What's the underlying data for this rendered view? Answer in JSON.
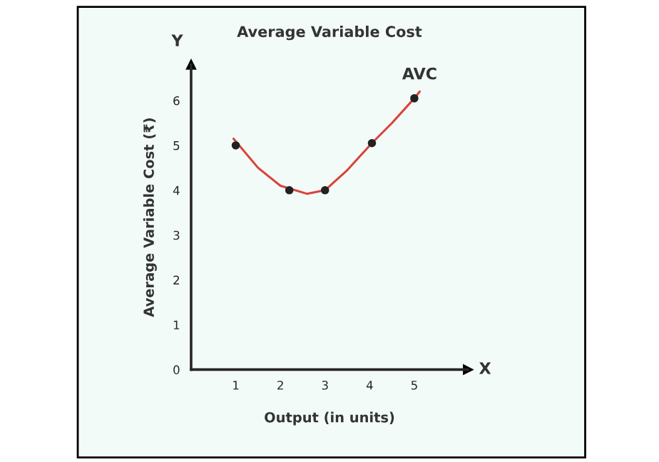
{
  "chart_data": {
    "type": "line",
    "title": "Average Variable Cost",
    "xlabel": "Output (in units)",
    "ylabel": "Average Variable Cost (₹)",
    "xlim": [
      0,
      6.2
    ],
    "ylim": [
      0,
      6.8
    ],
    "xticks": [
      1,
      2,
      3,
      4,
      5
    ],
    "yticks": [
      {
        "value": 0,
        "label": "0"
      },
      1,
      2,
      3,
      4,
      5,
      6
    ],
    "series": [
      {
        "name": "AVC",
        "color": "#d9433a",
        "x": [
          0.95,
          1.5,
          2,
          2.6,
          3,
          3.5,
          4.05,
          4.5,
          5,
          5.12
        ],
        "values": [
          5.15,
          4.5,
          4.1,
          3.92,
          4,
          4.45,
          5.05,
          5.5,
          6.05,
          6.2
        ]
      },
      {
        "type": "scatter",
        "color": "#222222",
        "marker": "circle",
        "x": [
          1,
          2.2,
          3,
          4.05,
          5
        ],
        "values": [
          5,
          4,
          4,
          5.05,
          6.05
        ]
      }
    ],
    "annotations": [
      "X",
      "Y"
    ],
    "grid": false,
    "legend": false
  }
}
